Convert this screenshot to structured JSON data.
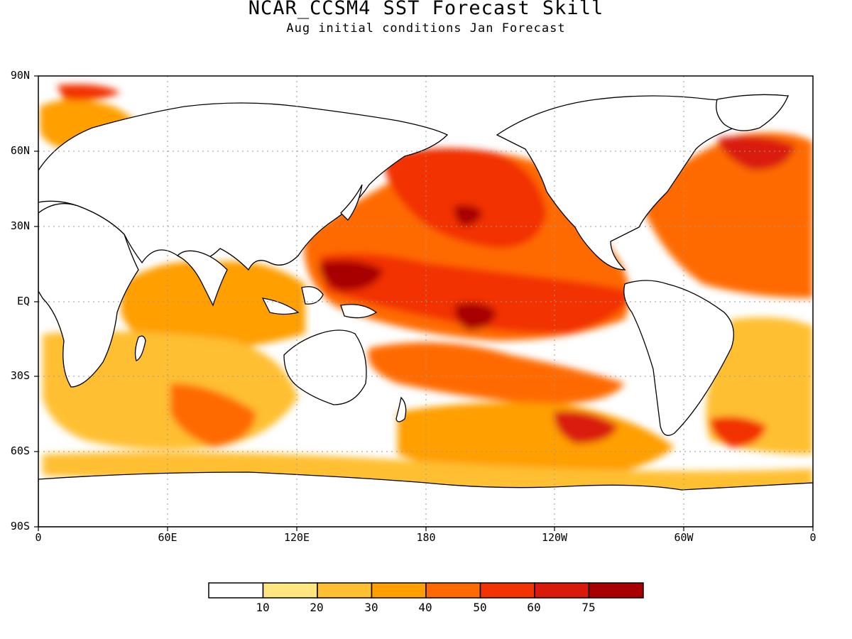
{
  "title": "NCAR_CCSM4 SST Forecast Skill",
  "subtitle": "Aug initial conditions  Jan Forecast",
  "lat_ticks": [
    "90N",
    "60N",
    "30N",
    "EQ",
    "30S",
    "60S",
    "90S"
  ],
  "lon_ticks": [
    "0",
    "60E",
    "120E",
    "180",
    "120W",
    "60W",
    "0"
  ],
  "colorbar": {
    "levels": [
      "10",
      "20",
      "30",
      "40",
      "50",
      "60",
      "75"
    ],
    "colors": [
      "#ffffff",
      "#ffe680",
      "#ffbf33",
      "#ff9f00",
      "#ff6a00",
      "#f23300",
      "#d91a0a",
      "#a80000"
    ]
  },
  "land_color": "#ffffff",
  "coastline_color": "#000000"
}
